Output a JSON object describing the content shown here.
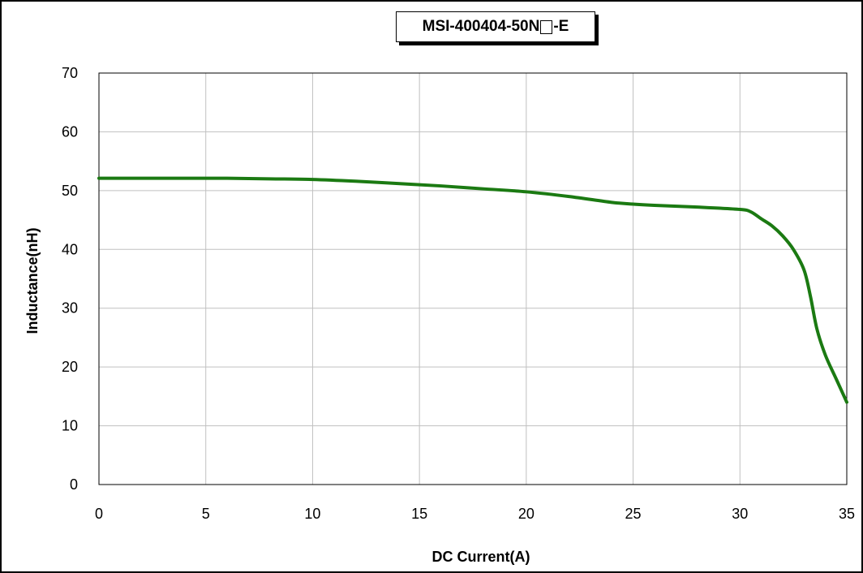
{
  "chart_data": {
    "type": "line",
    "title": {
      "prefix": "MSI-400404-50N",
      "suffix": "-E",
      "checkbox_glyph": "□"
    },
    "xlabel": "DC Current(A)",
    "ylabel": "Inductance(nH)",
    "xlim": [
      0,
      35
    ],
    "ylim": [
      0,
      70
    ],
    "xticks": [
      "0",
      "5",
      "10",
      "15",
      "20",
      "25",
      "30",
      "35"
    ],
    "yticks": [
      "0",
      "10",
      "20",
      "30",
      "40",
      "50",
      "60",
      "70"
    ],
    "grid": true,
    "series": [
      {
        "color": "#1b7a12",
        "x": [
          0,
          2,
          4,
          6,
          8,
          10,
          12,
          14,
          16,
          18,
          20,
          22,
          24,
          25,
          26,
          28,
          30,
          30.5,
          31,
          31.5,
          32,
          32.5,
          33,
          33.3,
          33.6,
          34,
          34.5,
          35
        ],
        "y": [
          52.1,
          52.1,
          52.1,
          52.1,
          52.0,
          51.9,
          51.6,
          51.2,
          50.8,
          50.3,
          49.8,
          49.0,
          48.0,
          47.7,
          47.5,
          47.2,
          46.8,
          46.4,
          45.2,
          44.0,
          42.3,
          40.0,
          36.5,
          32.0,
          26.5,
          22.0,
          18.0,
          14.0
        ]
      }
    ]
  }
}
